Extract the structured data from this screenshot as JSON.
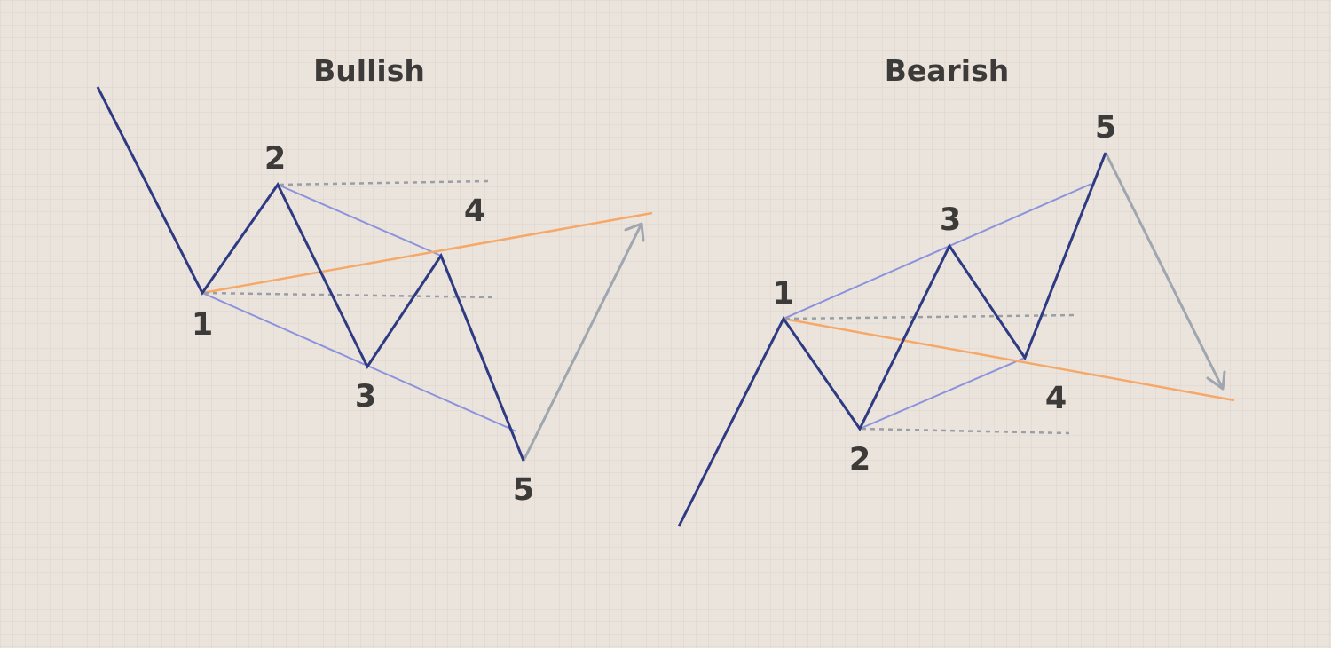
{
  "colors": {
    "background": "#ebe4dc",
    "grid": "#d8d1c9",
    "wave": "#2e3a82",
    "channel": "#8c93dc",
    "trendline": "#f5a868",
    "guide_dashed": "#9a9ea6",
    "arrow": "#a0a6b0",
    "label_text": "#3d3b3a"
  },
  "panels": {
    "bullish": {
      "title": "Bullish",
      "points": {
        "p1": "1",
        "p2": "2",
        "p3": "3",
        "p4": "4",
        "p5": "5"
      }
    },
    "bearish": {
      "title": "Bearish",
      "points": {
        "p1": "1",
        "p2": "2",
        "p3": "3",
        "p4": "4",
        "p5": "5"
      }
    }
  }
}
